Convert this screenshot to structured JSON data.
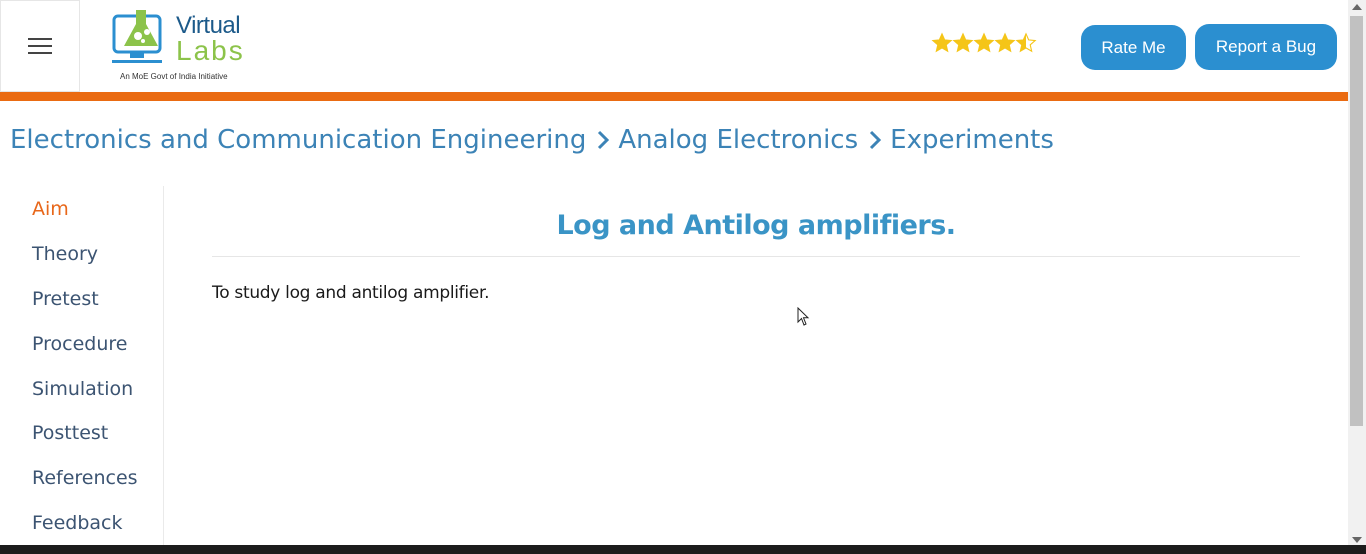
{
  "header": {
    "logo": {
      "line1": "Virtual",
      "line2": "Labs",
      "tagline": "An MoE Govt of India Initiative"
    },
    "rating": {
      "value": 4.5,
      "max": 5,
      "color": "#f5c518"
    },
    "rate_label": "Rate Me",
    "bug_label": "Report a Bug"
  },
  "breadcrumb": {
    "items": [
      "Electronics and Communication Engineering",
      "Analog Electronics",
      "Experiments"
    ]
  },
  "sidebar": {
    "items": [
      {
        "label": "Aim",
        "active": true
      },
      {
        "label": "Theory"
      },
      {
        "label": "Pretest"
      },
      {
        "label": "Procedure"
      },
      {
        "label": "Simulation"
      },
      {
        "label": "Posttest"
      },
      {
        "label": "References"
      },
      {
        "label": "Feedback"
      }
    ]
  },
  "main": {
    "title": "Log and Antilog amplifiers.",
    "aim_text": "To study log and antilog amplifier."
  },
  "colors": {
    "accent_orange": "#ea6b12",
    "button_blue": "#2b8fd0",
    "link_blue": "#3c83b6"
  }
}
